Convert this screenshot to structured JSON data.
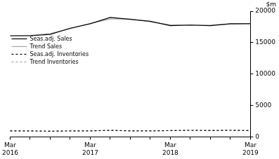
{
  "chart_data": {
    "type": "line",
    "ylabel": "$m",
    "categories": [
      "Mar 2016",
      null,
      null,
      null,
      "Mar 2017",
      null,
      null,
      null,
      "Mar 2018",
      null,
      null,
      null,
      "Mar 2019"
    ],
    "series": [
      {
        "name": "Seas.adj. Sales",
        "color": "#000000",
        "line_style": "solid",
        "values": [
          16100,
          16100,
          16300,
          17300,
          18000,
          19000,
          18700,
          18400,
          17700,
          17800,
          17700,
          18000,
          18000
        ]
      },
      {
        "name": "Trend Sales",
        "color": "#a6a6a6",
        "line_style": "solid",
        "values": [
          16050,
          16150,
          16450,
          17200,
          18050,
          18750,
          18750,
          18300,
          17850,
          17750,
          17800,
          17950,
          18050
        ]
      },
      {
        "name": "Seas.adj. Inventories",
        "color": "#000000",
        "line_style": "dashed",
        "values": [
          950,
          950,
          900,
          950,
          950,
          1050,
          950,
          950,
          1000,
          1050,
          1000,
          1050,
          1000
        ]
      },
      {
        "name": "Trend Inventories",
        "color": "#a6a6a6",
        "line_style": "dashed",
        "values": [
          950,
          930,
          920,
          940,
          980,
          1000,
          980,
          970,
          1000,
          1020,
          1030,
          1030,
          1020
        ]
      }
    ],
    "ylim": [
      0,
      20000
    ],
    "yticks": [
      0,
      5000,
      10000,
      15000,
      20000
    ],
    "grid": false,
    "legend": "center left"
  }
}
